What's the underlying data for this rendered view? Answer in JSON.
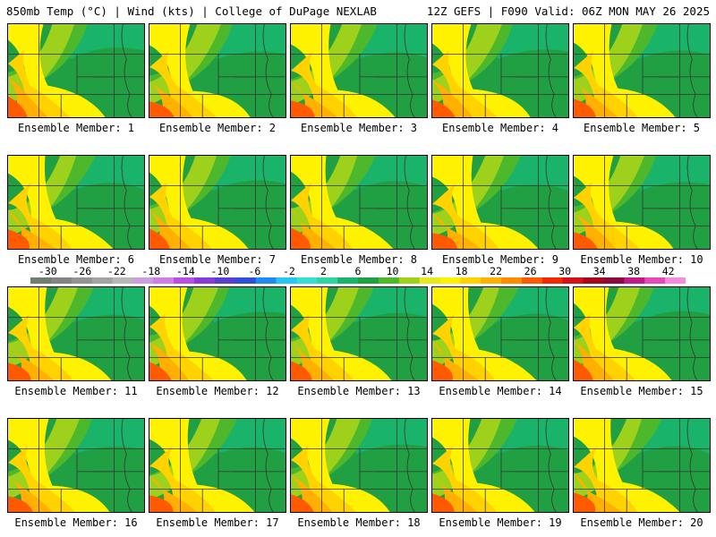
{
  "header": {
    "left": "850mb Temp (°C) | Wind (kts) | College of DuPage NEXLAB",
    "right": "12Z GEFS | F090 Valid: 06Z MON MAY 26 2025"
  },
  "colorbar": {
    "ticks": [
      "-30",
      "-26",
      "-22",
      "-18",
      "-14",
      "-10",
      "-6",
      "-2",
      "2",
      "6",
      "10",
      "14",
      "18",
      "22",
      "26",
      "30",
      "34",
      "38",
      "42"
    ],
    "range": [
      -32,
      44
    ],
    "colors": [
      "#6e7f6e",
      "#848484",
      "#939393",
      "#a3a3a3",
      "#b7b7b7",
      "#c9a0dc",
      "#d27ce6",
      "#b94fe0",
      "#8a3ad6",
      "#5a3fd0",
      "#2f4fd8",
      "#1f8af0",
      "#25c6f0",
      "#31e0d0",
      "#2dd6a0",
      "#19b36a",
      "#21a043",
      "#4eb82c",
      "#9ed11c",
      "#e6e91a",
      "#fff200",
      "#ffd200",
      "#ffb000",
      "#ff8c00",
      "#ff5a00",
      "#f22800",
      "#d4101a",
      "#a8081c",
      "#8e0a3a",
      "#c21a86",
      "#e64ab8",
      "#f38cdc"
    ]
  },
  "members": [
    {
      "label": "Ensemble Member: 1"
    },
    {
      "label": "Ensemble Member: 2"
    },
    {
      "label": "Ensemble Member: 3"
    },
    {
      "label": "Ensemble Member: 4"
    },
    {
      "label": "Ensemble Member: 5"
    },
    {
      "label": "Ensemble Member: 6"
    },
    {
      "label": "Ensemble Member: 7"
    },
    {
      "label": "Ensemble Member: 8"
    },
    {
      "label": "Ensemble Member: 9"
    },
    {
      "label": "Ensemble Member: 10"
    },
    {
      "label": "Ensemble Member: 11"
    },
    {
      "label": "Ensemble Member: 12"
    },
    {
      "label": "Ensemble Member: 13"
    },
    {
      "label": "Ensemble Member: 14"
    },
    {
      "label": "Ensemble Member: 15"
    },
    {
      "label": "Ensemble Member: 16"
    },
    {
      "label": "Ensemble Member: 17"
    },
    {
      "label": "Ensemble Member: 18"
    },
    {
      "label": "Ensemble Member: 19"
    },
    {
      "label": "Ensemble Member: 20"
    }
  ]
}
